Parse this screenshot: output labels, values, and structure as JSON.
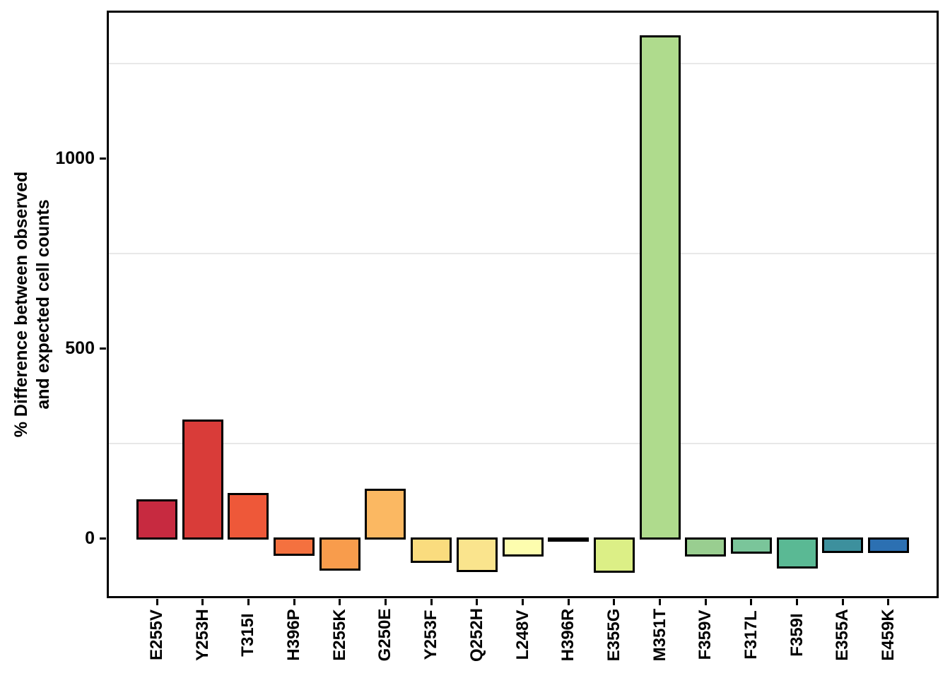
{
  "figure": {
    "background": "#FFFFFF",
    "title": ""
  },
  "chart_data": {
    "type": "bar",
    "title": "",
    "xlabel": "",
    "ylabel": "% Difference between observed and expected cell counts",
    "ylabel_lines": [
      "% Difference between observed",
      "and expected cell counts"
    ],
    "categories": [
      "E255V",
      "Y253H",
      "T315I",
      "H396P",
      "E255K",
      "G250E",
      "Y253F",
      "Q252H",
      "L248V",
      "H396R",
      "E355G",
      "M351T",
      "F359V",
      "F317L",
      "F359I",
      "E355A",
      "E459K"
    ],
    "values": [
      100,
      309,
      117,
      -43,
      -82,
      128,
      -63,
      -87,
      -45,
      -6,
      -89,
      1322,
      -46,
      -39,
      -78,
      -37,
      -37
    ],
    "bar_colors": [
      "#C72A40",
      "#D93C39",
      "#EE5839",
      "#F4713F",
      "#F89C4C",
      "#FBB862",
      "#FADC7E",
      "#FAE48D",
      "#FDFDAE",
      "#EDF59B",
      "#DCEF86",
      "#AFDB8D",
      "#99CE90",
      "#7AC59A",
      "#5AB994",
      "#3D909D",
      "#2C70B2"
    ],
    "bar_border_color": "#000000",
    "panel_border_color": "#000000",
    "gridline_color": "#E8E8E8",
    "grid": "minor-only",
    "minor_gridlines": [
      250,
      750,
      1250
    ],
    "yticks": [
      0,
      500,
      1000
    ],
    "ytick_labels": [
      "0",
      "500",
      "1000"
    ],
    "ylim": [
      -158,
      1389
    ],
    "legend_position": "none"
  }
}
